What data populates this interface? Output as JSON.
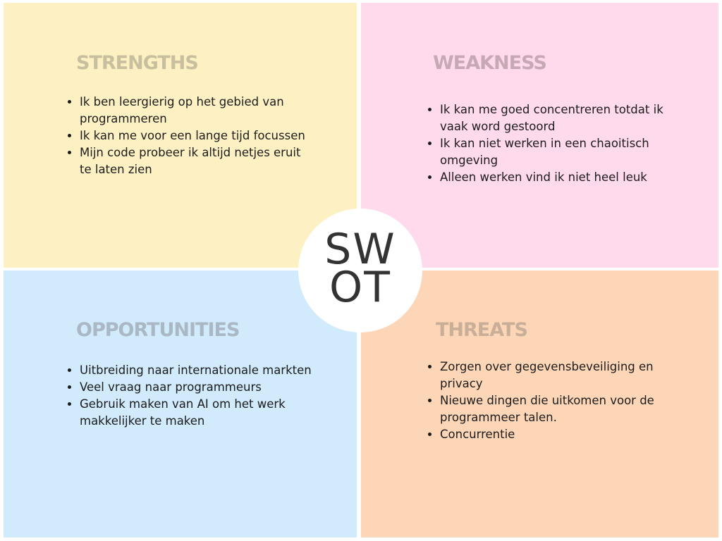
{
  "colors": {
    "strengths_bg": "#fdf0c2",
    "weakness_bg": "#fedaec",
    "opportunities_bg": "#d1eafc",
    "threats_bg": "#fdd6b7",
    "strengths_title": "#c7bf9d",
    "weakness_title": "#c7a8b5",
    "opportunities_title": "#a9b8c4",
    "threats_title": "#c9ae98"
  },
  "center": {
    "line1": "SW",
    "line2": "OT"
  },
  "strengths": {
    "title": "STRENGTHS",
    "items": [
      "Ik ben leergierig op het gebied van programmeren",
      "Ik kan me voor een lange tijd focussen",
      "Mijn code probeer ik altijd netjes eruit te laten zien"
    ]
  },
  "weakness": {
    "title": "WEAKNESS",
    "items": [
      "Ik kan me goed concentreren totdat ik vaak word gestoord",
      "Ik kan niet werken in een chaoitisch omgeving",
      "Alleen werken vind ik niet heel leuk"
    ]
  },
  "opportunities": {
    "title": "OPPORTUNITIES",
    "items": [
      "Uitbreiding naar internationale markten",
      "Veel vraag naar programmeurs",
      "Gebruik maken van AI om het werk makkelijker te maken"
    ]
  },
  "threats": {
    "title": "THREATS",
    "items": [
      "Zorgen over gegevensbeveiliging en privacy",
      "Nieuwe dingen die uitkomen voor de programmeer talen.",
      "Concurrentie"
    ]
  }
}
